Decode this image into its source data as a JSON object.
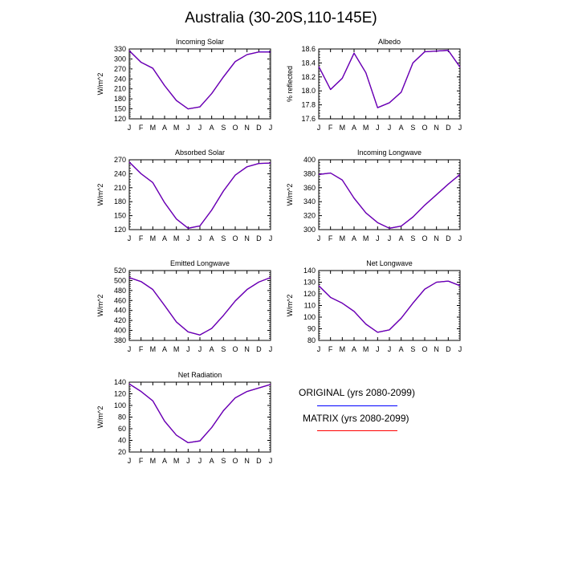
{
  "figure": {
    "title": "Australia (30-20S,110-145E)"
  },
  "legend": {
    "items": [
      {
        "label": "ORIGINAL (yrs 2080-2099)",
        "color": "#0000ff"
      },
      {
        "label": "MATRIX (yrs 2080-2099)",
        "color": "#ff0000"
      }
    ]
  },
  "colors": {
    "original": "#0000ff",
    "matrix": "#ff0000",
    "overlap": "#5a00c8"
  },
  "chart_data": [
    {
      "type": "line",
      "title": "Incoming Solar",
      "ylabel": "W/m^2",
      "x": [
        "J",
        "F",
        "M",
        "A",
        "M",
        "J",
        "J",
        "A",
        "S",
        "O",
        "N",
        "D",
        "J"
      ],
      "ylim": [
        120,
        330
      ],
      "yticks": [
        120,
        150,
        180,
        210,
        240,
        270,
        300,
        330
      ],
      "series": [
        {
          "values": [
            325,
            290,
            272,
            220,
            175,
            150,
            156,
            196,
            246,
            292,
            313,
            321,
            321
          ]
        },
        {
          "values": [
            325,
            290,
            272,
            220,
            175,
            150,
            156,
            196,
            246,
            292,
            313,
            321,
            321
          ]
        }
      ]
    },
    {
      "type": "line",
      "title": "Albedo",
      "ylabel": "% reflected",
      "x": [
        "J",
        "F",
        "M",
        "A",
        "M",
        "J",
        "J",
        "A",
        "S",
        "O",
        "N",
        "D",
        "J"
      ],
      "ylim": [
        17.6,
        18.6
      ],
      "yticks": [
        17.6,
        17.8,
        18.0,
        18.2,
        18.4,
        18.6
      ],
      "ytick_labels": [
        "17.6",
        "17.8",
        "18.0",
        "18.2",
        "18.4",
        "18.6"
      ],
      "series": [
        {
          "values": [
            18.35,
            18.02,
            18.18,
            18.54,
            18.26,
            17.76,
            17.83,
            17.98,
            18.4,
            18.56,
            18.57,
            18.58,
            18.34
          ]
        },
        {
          "values": [
            18.35,
            18.02,
            18.18,
            18.54,
            18.26,
            17.76,
            17.83,
            17.98,
            18.4,
            18.56,
            18.57,
            18.58,
            18.34
          ]
        }
      ]
    },
    {
      "type": "line",
      "title": "Absorbed Solar",
      "ylabel": "W/m^2",
      "x": [
        "J",
        "F",
        "M",
        "A",
        "M",
        "J",
        "J",
        "A",
        "S",
        "O",
        "N",
        "D",
        "J"
      ],
      "ylim": [
        120,
        270
      ],
      "yticks": [
        120,
        150,
        180,
        210,
        240,
        270
      ],
      "series": [
        {
          "values": [
            265,
            240,
            221,
            178,
            143,
            123,
            128,
            162,
            203,
            237,
            255,
            262,
            263
          ]
        },
        {
          "values": [
            265,
            240,
            221,
            178,
            143,
            123,
            128,
            162,
            203,
            237,
            255,
            262,
            263
          ]
        }
      ]
    },
    {
      "type": "line",
      "title": "Incoming Longwave",
      "ylabel": "W/m^2",
      "x": [
        "J",
        "F",
        "M",
        "A",
        "M",
        "J",
        "J",
        "A",
        "S",
        "O",
        "N",
        "D",
        "J"
      ],
      "ylim": [
        300,
        400
      ],
      "yticks": [
        300,
        320,
        340,
        360,
        380,
        400
      ],
      "series": [
        {
          "values": [
            379,
            381,
            371,
            345,
            324,
            310,
            302,
            305,
            318,
            335,
            350,
            365,
            379
          ]
        },
        {
          "values": [
            379,
            381,
            371,
            345,
            324,
            310,
            302,
            305,
            318,
            335,
            350,
            365,
            379
          ]
        }
      ]
    },
    {
      "type": "line",
      "title": "Emitted Longwave",
      "ylabel": "W/m^2",
      "x": [
        "J",
        "F",
        "M",
        "A",
        "M",
        "J",
        "J",
        "A",
        "S",
        "O",
        "N",
        "D",
        "J"
      ],
      "ylim": [
        380,
        520
      ],
      "yticks": [
        380,
        400,
        420,
        440,
        460,
        480,
        500,
        520
      ],
      "series": [
        {
          "values": [
            506,
            498,
            482,
            450,
            417,
            397,
            391,
            404,
            430,
            459,
            482,
            497,
            506
          ]
        },
        {
          "values": [
            506,
            498,
            482,
            450,
            417,
            397,
            391,
            404,
            430,
            459,
            482,
            497,
            506
          ]
        }
      ]
    },
    {
      "type": "line",
      "title": "Net Longwave",
      "ylabel": "W/m^2",
      "x": [
        "J",
        "F",
        "M",
        "A",
        "M",
        "J",
        "J",
        "A",
        "S",
        "O",
        "N",
        "D",
        "J"
      ],
      "ylim": [
        80,
        140
      ],
      "yticks": [
        80,
        90,
        100,
        110,
        120,
        130,
        140
      ],
      "series": [
        {
          "values": [
            127,
            117,
            112,
            105,
            94,
            87,
            89,
            99,
            112,
            124,
            130,
            131,
            127
          ]
        },
        {
          "values": [
            127,
            117,
            112,
            105,
            94,
            87,
            89,
            99,
            112,
            124,
            130,
            131,
            127
          ]
        }
      ]
    },
    {
      "type": "line",
      "title": "Net Radiation",
      "ylabel": "W/m^2",
      "x": [
        "J",
        "F",
        "M",
        "A",
        "M",
        "J",
        "J",
        "A",
        "S",
        "O",
        "N",
        "D",
        "J"
      ],
      "ylim": [
        20,
        140
      ],
      "yticks": [
        20,
        40,
        60,
        80,
        100,
        120,
        140
      ],
      "series": [
        {
          "values": [
            137,
            124,
            108,
            73,
            49,
            36,
            39,
            62,
            91,
            113,
            124,
            130,
            136
          ]
        },
        {
          "values": [
            137,
            124,
            108,
            73,
            49,
            36,
            39,
            62,
            91,
            113,
            124,
            130,
            136
          ]
        }
      ]
    }
  ]
}
